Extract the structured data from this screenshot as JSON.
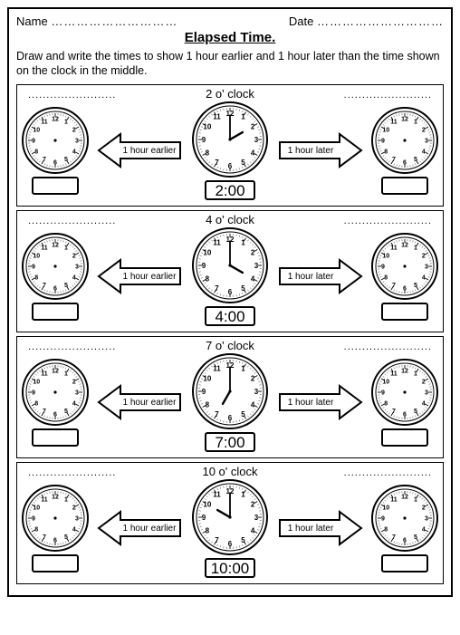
{
  "header": {
    "name_label": "Name",
    "date_label": "Date",
    "dots": "…………………………"
  },
  "title": "Elapsed Time.",
  "instructions": "Draw and write the times to show 1 hour earlier and 1 hour later than the time shown on the clock in the middle.",
  "arrows": {
    "left_label": "1 hour earlier",
    "right_label": "1 hour later"
  },
  "style": {
    "clock_face_fill": "#ffffff",
    "clock_stroke": "#000000",
    "clock_inner_stroke_w": 1,
    "clock_outer_stroke_w": 2,
    "numeral_fontsize": 7,
    "numeral_fontsize_center": 8,
    "hand_stroke_w": 2.4,
    "arrow_fill": "#ffffff",
    "arrow_stroke": "#000000",
    "arrow_stroke_w": 2,
    "arrow_label_fontsize": 10
  },
  "rows": [
    {
      "label": "2 o' clock",
      "digital": "2:00",
      "hour_angle": 60,
      "minute_angle": 0
    },
    {
      "label": "4 o' clock",
      "digital": "4:00",
      "hour_angle": 120,
      "minute_angle": 0
    },
    {
      "label": "7  o' clock",
      "digital": "7:00",
      "hour_angle": 210,
      "minute_angle": 0
    },
    {
      "label": "10 o' clock",
      "digital": "10:00",
      "hour_angle": 300,
      "minute_angle": 0
    }
  ],
  "blank_dots": "........................"
}
